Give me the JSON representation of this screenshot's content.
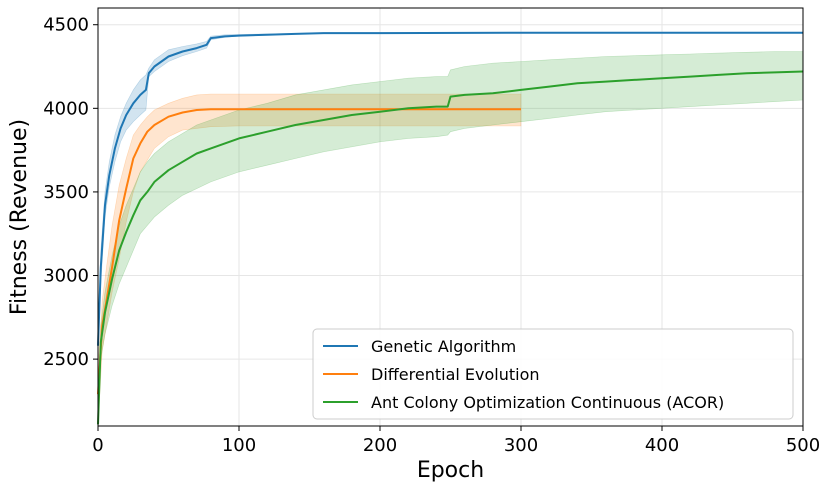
{
  "chart_data": {
    "type": "line",
    "title": "",
    "xlabel": "Epoch",
    "ylabel": "Fitness (Revenue)",
    "xlim": [
      0,
      500
    ],
    "ylim": [
      2100,
      4600
    ],
    "xticks": [
      0,
      100,
      200,
      300,
      400,
      500
    ],
    "yticks": [
      2500,
      3000,
      3500,
      4000,
      4500
    ],
    "grid": true,
    "legend_position": "lower-right",
    "series": [
      {
        "name": "Genetic Algorithm",
        "color": "#1f77b4",
        "x": [
          0,
          2,
          5,
          8,
          12,
          16,
          20,
          25,
          30,
          34,
          36,
          40,
          50,
          60,
          70,
          77,
          80,
          90,
          100,
          120,
          140,
          160,
          200,
          300,
          400,
          500
        ],
        "y": [
          2580,
          3050,
          3420,
          3600,
          3760,
          3880,
          3960,
          4030,
          4080,
          4110,
          4210,
          4250,
          4310,
          4340,
          4360,
          4380,
          4420,
          4430,
          4435,
          4440,
          4445,
          4450,
          4450,
          4452,
          4452,
          4452
        ],
        "lower": [
          2580,
          2950,
          3350,
          3530,
          3680,
          3800,
          3870,
          3920,
          3960,
          3990,
          4190,
          4220,
          4280,
          4315,
          4340,
          4360,
          4410,
          4425,
          4432,
          4438,
          4444,
          4450,
          4450,
          4452,
          4452,
          4452
        ],
        "upper": [
          2580,
          3150,
          3500,
          3680,
          3840,
          3950,
          4030,
          4110,
          4170,
          4200,
          4240,
          4290,
          4350,
          4370,
          4385,
          4400,
          4432,
          4440,
          4442,
          4445,
          4448,
          4452,
          4452,
          4453,
          4453,
          4453
        ]
      },
      {
        "name": "Differential Evolution",
        "color": "#ff7f0e",
        "x": [
          0,
          3,
          6,
          10,
          15,
          20,
          25,
          30,
          35,
          40,
          50,
          60,
          70,
          80,
          100,
          150,
          200,
          250,
          300
        ],
        "y": [
          2290,
          2700,
          2850,
          3050,
          3330,
          3520,
          3700,
          3790,
          3860,
          3900,
          3950,
          3975,
          3990,
          3995,
          3995,
          3995,
          3995,
          3995,
          3995
        ],
        "lower": [
          2100,
          2550,
          2700,
          2900,
          3100,
          3320,
          3500,
          3620,
          3690,
          3760,
          3830,
          3870,
          3880,
          3890,
          3895,
          3895,
          3895,
          3895,
          3895
        ],
        "upper": [
          2450,
          2850,
          3050,
          3300,
          3540,
          3700,
          3840,
          3900,
          3950,
          3990,
          4030,
          4060,
          4080,
          4085,
          4085,
          4085,
          4085,
          4085,
          4085
        ]
      },
      {
        "name": "Ant Colony Optimization Continuous (ACOR)",
        "color": "#2ca02c",
        "x": [
          0,
          2,
          5,
          10,
          15,
          20,
          25,
          30,
          35,
          40,
          50,
          60,
          70,
          80,
          100,
          120,
          140,
          160,
          180,
          200,
          220,
          240,
          248,
          250,
          260,
          280,
          300,
          320,
          340,
          360,
          380,
          400,
          420,
          440,
          460,
          480,
          500
        ],
        "y": [
          2110,
          2600,
          2780,
          2980,
          3150,
          3260,
          3360,
          3450,
          3500,
          3560,
          3630,
          3680,
          3730,
          3760,
          3820,
          3860,
          3900,
          3930,
          3960,
          3980,
          4000,
          4010,
          4010,
          4070,
          4080,
          4090,
          4110,
          4130,
          4150,
          4160,
          4170,
          4180,
          4190,
          4200,
          4210,
          4215,
          4220
        ],
        "lower": [
          2100,
          2500,
          2650,
          2820,
          2950,
          3050,
          3150,
          3250,
          3300,
          3350,
          3420,
          3480,
          3520,
          3560,
          3620,
          3660,
          3700,
          3740,
          3770,
          3800,
          3820,
          3830,
          3840,
          3860,
          3880,
          3900,
          3920,
          3940,
          3960,
          3980,
          3990,
          4000,
          4010,
          4020,
          4030,
          4040,
          4050
        ],
        "upper": [
          2120,
          2700,
          2900,
          3120,
          3300,
          3420,
          3520,
          3620,
          3680,
          3730,
          3800,
          3850,
          3900,
          3930,
          3990,
          4030,
          4080,
          4110,
          4140,
          4160,
          4180,
          4190,
          4190,
          4230,
          4250,
          4270,
          4280,
          4290,
          4300,
          4310,
          4315,
          4320,
          4325,
          4330,
          4335,
          4340,
          4340
        ]
      }
    ]
  }
}
